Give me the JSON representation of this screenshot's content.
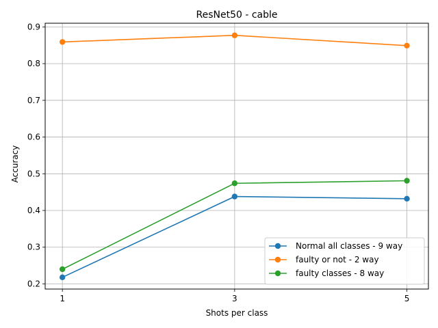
{
  "chart_data": {
    "type": "line",
    "title": "ResNet50 - cable",
    "xlabel": "Shots per class",
    "ylabel": "Accuracy",
    "x": [
      1,
      3,
      5
    ],
    "xticks": [
      "1",
      "3",
      "5"
    ],
    "xlim": [
      0.8,
      5.25
    ],
    "ylim": [
      0.186,
      0.91
    ],
    "yticks": [
      "0.2",
      "0.3",
      "0.4",
      "0.5",
      "0.6",
      "0.7",
      "0.8",
      "0.9"
    ],
    "grid": true,
    "legend_position": "lower-right",
    "series": [
      {
        "name": "Normal all classes - 9 way",
        "values": [
          0.218,
          0.438,
          0.432
        ],
        "color": "#1f77b4"
      },
      {
        "name": "faulty or not - 2 way",
        "values": [
          0.859,
          0.877,
          0.849
        ],
        "color": "#ff7f0e"
      },
      {
        "name": "faulty classes - 8 way",
        "values": [
          0.24,
          0.474,
          0.481
        ],
        "color": "#2ca02c"
      }
    ]
  }
}
